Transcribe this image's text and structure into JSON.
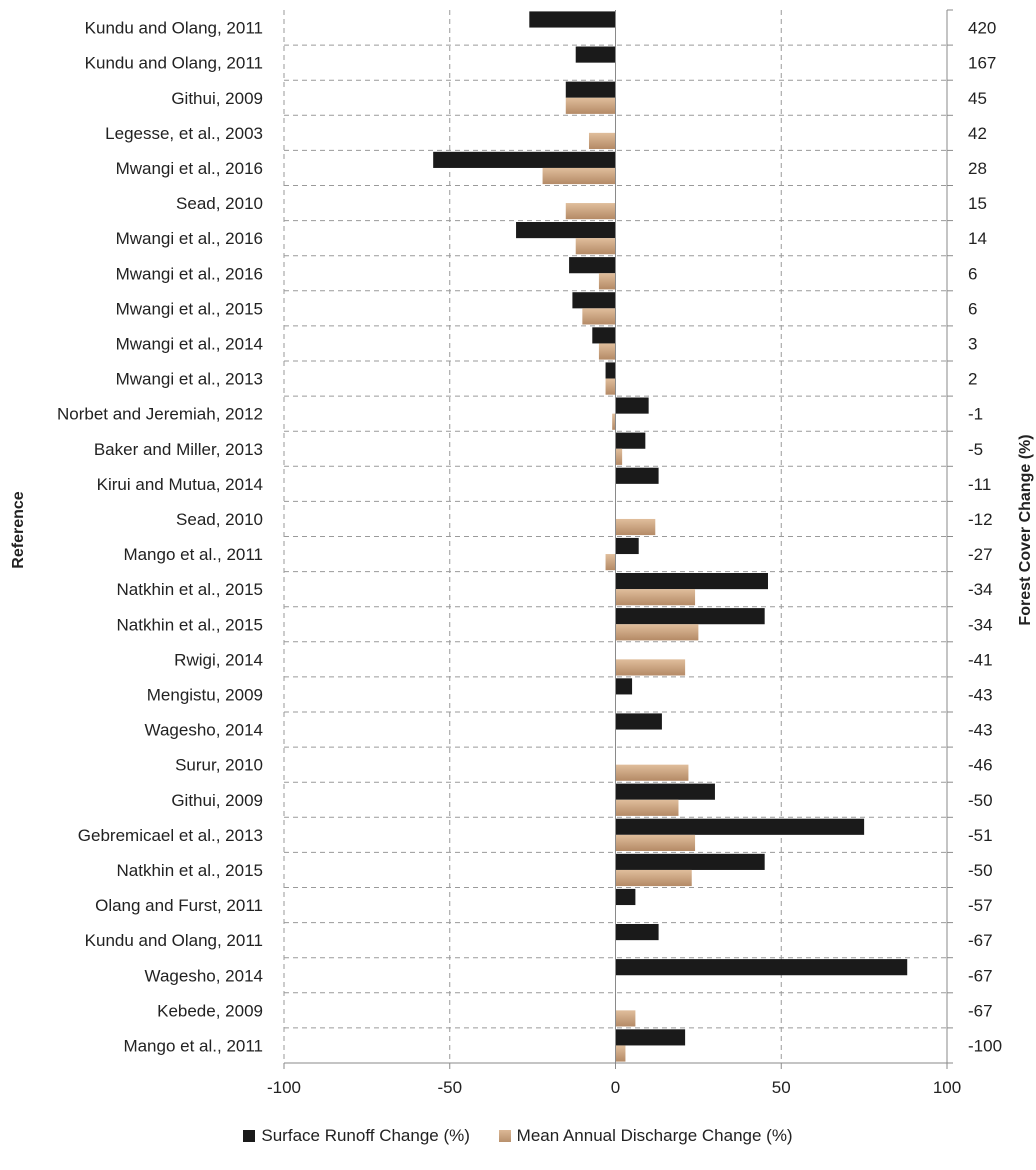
{
  "chart_data": {
    "type": "bar",
    "orientation": "horizontal",
    "ylabel": "Reference",
    "y2label": "Forest Cover Change (%)",
    "xlim": [
      -100,
      100
    ],
    "xticks": [
      -100,
      -50,
      0,
      50,
      100
    ],
    "grid": true,
    "legend_position": "bottom",
    "categories": [
      "Kundu and Olang, 2011",
      "Kundu and Olang, 2011",
      "Githui, 2009",
      "Legesse, et al., 2003",
      "Mwangi et al., 2016",
      "Sead, 2010",
      "Mwangi et al., 2016",
      "Mwangi et al., 2016",
      "Mwangi et al., 2015",
      "Mwangi et al., 2014",
      "Mwangi et al., 2013",
      "Norbet and Jeremiah, 2012",
      "Baker and Miller, 2013",
      "Kirui and Mutua, 2014",
      "Sead, 2010",
      "Mango et al., 2011",
      "Natkhin et al., 2015",
      "Natkhin et al., 2015",
      "Rwigi, 2014",
      "Mengistu,  2009",
      "Wagesho, 2014",
      "Surur, 2010",
      "Githui, 2009",
      "Gebremicael et al.,  2013",
      "Natkhin et al., 2015",
      "Olang and Furst, 2011",
      "Kundu and Olang, 2011",
      "Wagesho, 2014",
      "Kebede, 2009",
      "Mango et al., 2011"
    ],
    "forest_cover_change": [
      "420",
      "167",
      "45",
      "42",
      "28",
      "15",
      "14",
      "6",
      "6",
      "3",
      "2",
      "-1",
      "-5",
      "-11",
      "-12",
      "-27",
      "-34",
      "-34",
      "-41",
      "-43",
      "-43",
      "-46",
      "-50",
      "-51",
      "-50",
      "-57",
      "-67",
      "-67",
      "-67",
      "-100"
    ],
    "series": [
      {
        "name": "Surface Runoff Change (%)",
        "color": "#1a1a1a",
        "values": [
          -26,
          -12,
          -15,
          null,
          -55,
          null,
          -30,
          -14,
          -13,
          -7,
          -3,
          10,
          9,
          13,
          null,
          7,
          46,
          45,
          null,
          5,
          14,
          null,
          30,
          75,
          45,
          6,
          13,
          88,
          null,
          21
        ]
      },
      {
        "name": "Mean Annual Discharge Change (%)",
        "color": "#c9a17e",
        "values": [
          null,
          null,
          -15,
          -8,
          -22,
          -15,
          -12,
          -5,
          -10,
          -5,
          -3,
          -1,
          2,
          null,
          12,
          -3,
          24,
          25,
          21,
          null,
          null,
          22,
          19,
          24,
          23,
          null,
          null,
          null,
          6,
          3
        ]
      }
    ]
  }
}
